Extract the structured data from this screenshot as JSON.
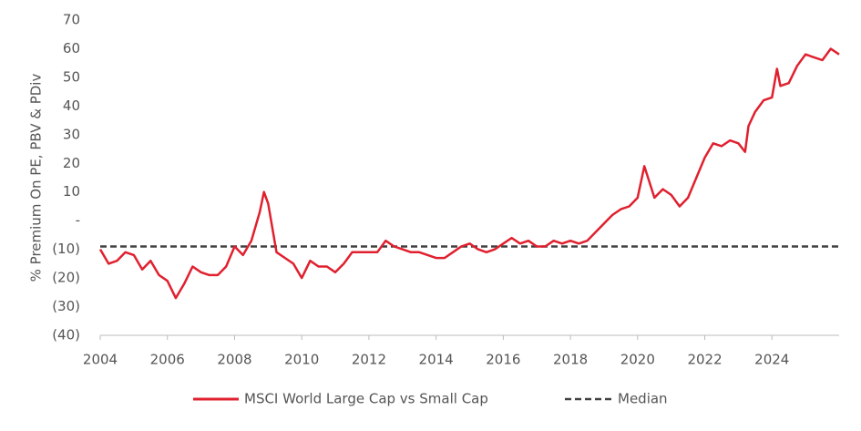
{
  "chart_data": {
    "type": "line",
    "y_label": "% Premium On PE, PBV & PDiv",
    "x": [
      2004.0,
      2004.25,
      2004.5,
      2004.75,
      2005.0,
      2005.25,
      2005.5,
      2005.75,
      2006.0,
      2006.25,
      2006.5,
      2006.75,
      2007.0,
      2007.25,
      2007.5,
      2007.75,
      2008.0,
      2008.25,
      2008.5,
      2008.75,
      2008.875,
      2009.0,
      2009.25,
      2009.5,
      2009.75,
      2010.0,
      2010.25,
      2010.5,
      2010.75,
      2011.0,
      2011.25,
      2011.5,
      2011.75,
      2012.0,
      2012.25,
      2012.5,
      2012.75,
      2013.0,
      2013.25,
      2013.5,
      2013.75,
      2014.0,
      2014.25,
      2014.5,
      2014.75,
      2015.0,
      2015.25,
      2015.5,
      2015.75,
      2016.0,
      2016.25,
      2016.5,
      2016.75,
      2017.0,
      2017.25,
      2017.5,
      2017.75,
      2018.0,
      2018.25,
      2018.5,
      2018.75,
      2019.0,
      2019.25,
      2019.5,
      2019.75,
      2020.0,
      2020.2,
      2020.5,
      2020.75,
      2021.0,
      2021.25,
      2021.5,
      2021.75,
      2022.0,
      2022.25,
      2022.5,
      2022.75,
      2023.0,
      2023.2,
      2023.3,
      2023.5,
      2023.75,
      2024.0,
      2024.15,
      2024.25,
      2024.5,
      2024.75,
      2025.0,
      2025.25,
      2025.5,
      2025.75,
      2026.0
    ],
    "series": [
      {
        "name": "MSCI World Large Cap vs Small Cap",
        "color": "#e0202e",
        "values": [
          -10,
          -15,
          -14,
          -11,
          -12,
          -17,
          -14,
          -19,
          -21,
          -27,
          -22,
          -16,
          -18,
          -19,
          -19,
          -16,
          -9,
          -12,
          -7,
          3,
          10,
          6,
          -11,
          -13,
          -15,
          -20,
          -14,
          -16,
          -16,
          -18,
          -15,
          -11,
          -11,
          -11,
          -11,
          -7,
          -9,
          -10,
          -11,
          -11,
          -12,
          -13,
          -13,
          -11,
          -9,
          -8,
          -10,
          -11,
          -10,
          -8,
          -6,
          -8,
          -7,
          -9,
          -9,
          -7,
          -8,
          -7,
          -8,
          -7,
          -4,
          -1,
          2,
          4,
          5,
          8,
          19,
          8,
          11,
          9,
          5,
          8,
          15,
          22,
          27,
          26,
          28,
          27,
          24,
          33,
          38,
          42,
          43,
          53,
          47,
          48,
          54,
          58,
          57,
          56,
          60,
          58
        ]
      }
    ],
    "reference_line": {
      "name": "Median",
      "value": -9,
      "color": "#404040"
    },
    "xlim": [
      2004,
      2026
    ],
    "xticks": [
      2004,
      2006,
      2008,
      2010,
      2012,
      2014,
      2016,
      2018,
      2020,
      2022,
      2024
    ],
    "ylim": [
      -40,
      70
    ],
    "yticks": [
      {
        "value": -40,
        "label": "(40)"
      },
      {
        "value": -30,
        "label": "(30)"
      },
      {
        "value": -20,
        "label": "(20)"
      },
      {
        "value": -10,
        "label": "(10)"
      },
      {
        "value": 0,
        "label": "-"
      },
      10,
      20,
      30,
      40,
      50,
      60,
      70
    ],
    "grid": false
  }
}
